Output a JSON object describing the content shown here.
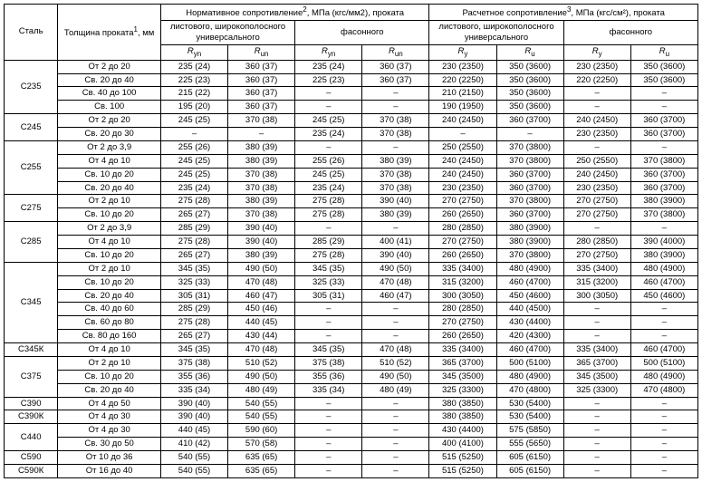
{
  "headers": {
    "steel": "Сталь",
    "thickness": "Толщина проката",
    "thickness_sup": "1",
    "thickness_unit": ", мм",
    "norm_group": "Нормативное сопротивление",
    "norm_sup": "2",
    "norm_unit": ", МПа (кгс/мм2), проката",
    "calc_group": "Расчетное сопротивление",
    "calc_sup": "3",
    "calc_unit": ", МПа (кгс/см²), проката",
    "sheet": "листового, широкополосного универсального",
    "shaped": "фасонного",
    "Ryn": "R",
    "Ryn_sub": "yn",
    "Run": "R",
    "Run_sub": "un",
    "Ry": "R",
    "Ry_sub": "y",
    "Ru": "R",
    "Ru_sub": "u"
  },
  "rows": [
    {
      "steel": "С235",
      "span": 4,
      "thk": [
        "От 2 до 20",
        "Св. 20 до 40",
        "Св. 40 до 100",
        "Св. 100"
      ],
      "v": [
        [
          "235 (24)",
          "360 (37)",
          "235 (24)",
          "360 (37)",
          "230 (2350)",
          "350 (3600)",
          "230 (2350)",
          "350 (3600)"
        ],
        [
          "225 (23)",
          "360 (37)",
          "225 (23)",
          "360 (37)",
          "220 (2250)",
          "350 (3600)",
          "220 (2250)",
          "350 (3600)"
        ],
        [
          "215 (22)",
          "360 (37)",
          "–",
          "–",
          "210 (2150)",
          "350 (3600)",
          "–",
          "–"
        ],
        [
          "195 (20)",
          "360 (37)",
          "–",
          "–",
          "190 (1950)",
          "350 (3600)",
          "–",
          "–"
        ]
      ]
    },
    {
      "steel": "С245",
      "span": 2,
      "thk": [
        "От 2 до 20",
        "Св. 20 до 30"
      ],
      "v": [
        [
          "245 (25)",
          "370 (38)",
          "245 (25)",
          "370 (38)",
          "240 (2450)",
          "360 (3700)",
          "240 (2450)",
          "360 (3700)"
        ],
        [
          "–",
          "–",
          "235 (24)",
          "370 (38)",
          "–",
          "–",
          "230 (2350)",
          "360 (3700)"
        ]
      ]
    },
    {
      "steel": "С255",
      "span": 4,
      "thk": [
        "От 2 до 3,9",
        "От 4 до 10",
        "Св. 10 до 20",
        "Св. 20 до 40"
      ],
      "v": [
        [
          "255 (26)",
          "380 (39)",
          "–",
          "–",
          "250 (2550)",
          "370 (3800)",
          "–",
          "–"
        ],
        [
          "245 (25)",
          "380 (39)",
          "255 (26)",
          "380 (39)",
          "240 (2450)",
          "370 (3800)",
          "250 (2550)",
          "370 (3800)"
        ],
        [
          "245 (25)",
          "370 (38)",
          "245 (25)",
          "370 (38)",
          "240 (2450)",
          "360 (3700)",
          "240 (2450)",
          "360 (3700)"
        ],
        [
          "235 (24)",
          "370 (38)",
          "235 (24)",
          "370 (38)",
          "230 (2350)",
          "360 (3700)",
          "230 (2350)",
          "360 (3700)"
        ]
      ]
    },
    {
      "steel": "С275",
      "span": 2,
      "thk": [
        "От 2 до 10",
        "Св. 10 до 20"
      ],
      "v": [
        [
          "275 (28)",
          "380 (39)",
          "275 (28)",
          "390 (40)",
          "270 (2750)",
          "370 (3800)",
          "270 (2750)",
          "380 (3900)"
        ],
        [
          "265 (27)",
          "370 (38)",
          "275 (28)",
          "380 (39)",
          "260 (2650)",
          "360 (3700)",
          "270 (2750)",
          "370 (3800)"
        ]
      ]
    },
    {
      "steel": "С285",
      "span": 3,
      "thk": [
        "От 2 до 3,9",
        "От 4 до 10",
        "Св. 10 до 20"
      ],
      "v": [
        [
          "285 (29)",
          "390 (40)",
          "–",
          "–",
          "280 (2850)",
          "380 (3900)",
          "–",
          "–"
        ],
        [
          "275 (28)",
          "390 (40)",
          "285 (29)",
          "400 (41)",
          "270 (2750)",
          "380 (3900)",
          "280 (2850)",
          "390 (4000)"
        ],
        [
          "265 (27)",
          "380 (39)",
          "275 (28)",
          "390 (40)",
          "260 (2650)",
          "370 (3800)",
          "270 (2750)",
          "380 (3900)"
        ]
      ]
    },
    {
      "steel": "С345",
      "span": 6,
      "thk": [
        "От 2 до 10",
        "Св. 10 до 20",
        "Св. 20 до 40",
        "Св. 40 до 60",
        "Св. 60 до 80",
        "Св. 80 до 160"
      ],
      "v": [
        [
          "345 (35)",
          "490 (50)",
          "345 (35)",
          "490 (50)",
          "335 (3400)",
          "480 (4900)",
          "335 (3400)",
          "480 (4900)"
        ],
        [
          "325 (33)",
          "470 (48)",
          "325 (33)",
          "470 (48)",
          "315 (3200)",
          "460 (4700)",
          "315 (3200)",
          "460 (4700)"
        ],
        [
          "305 (31)",
          "460 (47)",
          "305 (31)",
          "460 (47)",
          "300 (3050)",
          "450 (4600)",
          "300 (3050)",
          "450 (4600)"
        ],
        [
          "285 (29)",
          "450 (46)",
          "–",
          "–",
          "280 (2850)",
          "440 (4500)",
          "–",
          "–"
        ],
        [
          "275 (28)",
          "440 (45)",
          "–",
          "–",
          "270 (2750)",
          "430 (4400)",
          "–",
          "–"
        ],
        [
          "265 (27)",
          "430 (44)",
          "–",
          "–",
          "260 (2650)",
          "420 (4300)",
          "–",
          "–"
        ]
      ]
    },
    {
      "steel": "С345К",
      "span": 1,
      "thk": [
        "От 4 до 10"
      ],
      "v": [
        [
          "345 (35)",
          "470 (48)",
          "345 (35)",
          "470 (48)",
          "335 (3400)",
          "460 (4700)",
          "335 (3400)",
          "460 (4700)"
        ]
      ]
    },
    {
      "steel": "С375",
      "span": 3,
      "thk": [
        "От 2 до 10",
        "Св. 10 до 20",
        "Св. 20 до 40"
      ],
      "v": [
        [
          "375 (38)",
          "510 (52)",
          "375 (38)",
          "510 (52)",
          "365 (3700)",
          "500 (5100)",
          "365 (3700)",
          "500 (5100)"
        ],
        [
          "355 (36)",
          "490 (50)",
          "355 (36)",
          "490 (50)",
          "345 (3500)",
          "480 (4900)",
          "345 (3500)",
          "480 (4900)"
        ],
        [
          "335 (34)",
          "480 (49)",
          "335 (34)",
          "480 (49)",
          "325 (3300)",
          "470 (4800)",
          "325 (3300)",
          "470 (4800)"
        ]
      ]
    },
    {
      "steel": "С390",
      "span": 1,
      "thk": [
        "От 4 до 50"
      ],
      "v": [
        [
          "390 (40)",
          "540 (55)",
          "–",
          "–",
          "380 (3850)",
          "530 (5400)",
          "–",
          "–"
        ]
      ]
    },
    {
      "steel": "С390К",
      "span": 1,
      "thk": [
        "От 4 до 30"
      ],
      "v": [
        [
          "390 (40)",
          "540 (55)",
          "–",
          "–",
          "380 (3850)",
          "530 (5400)",
          "–",
          "–"
        ]
      ]
    },
    {
      "steel": "С440",
      "span": 2,
      "thk": [
        "От 4 до 30",
        "Св. 30 до 50"
      ],
      "v": [
        [
          "440 (45)",
          "590 (60)",
          "–",
          "–",
          "430 (4400)",
          "575 (5850)",
          "–",
          "–"
        ],
        [
          "410 (42)",
          "570 (58)",
          "–",
          "–",
          "400 (4100)",
          "555 (5650)",
          "–",
          "–"
        ]
      ]
    },
    {
      "steel": "С590",
      "span": 1,
      "thk": [
        "От 10 до 36"
      ],
      "v": [
        [
          "540 (55)",
          "635 (65)",
          "–",
          "–",
          "515 (5250)",
          "605 (6150)",
          "–",
          "–"
        ]
      ]
    },
    {
      "steel": "С590К",
      "span": 1,
      "thk": [
        "От 16 до 40"
      ],
      "v": [
        [
          "540 (55)",
          "635 (65)",
          "–",
          "–",
          "515 (5250)",
          "605 (6150)",
          "–",
          "–"
        ]
      ]
    }
  ]
}
